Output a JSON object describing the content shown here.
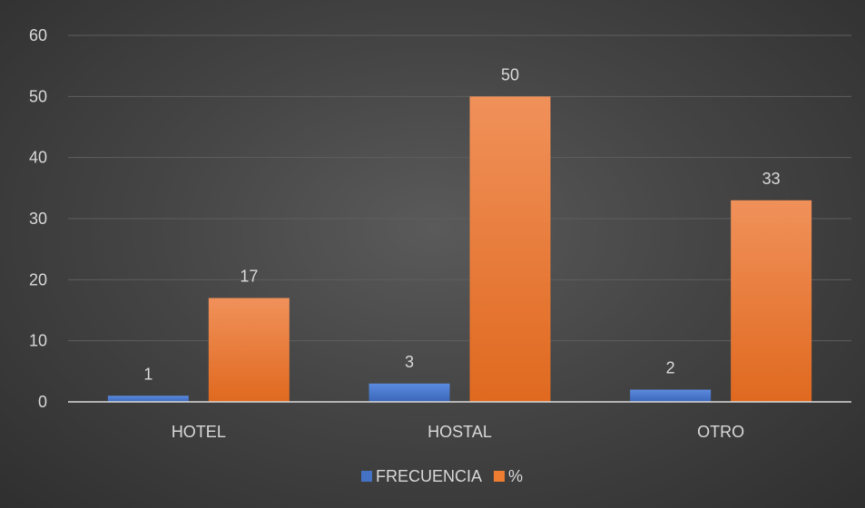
{
  "chart_data": {
    "type": "bar",
    "categories": [
      "HOTEL",
      "HOSTAL",
      "OTRO"
    ],
    "series": [
      {
        "name": "FRECUENCIA",
        "values": [
          1,
          3,
          2
        ],
        "color": "#4472c4"
      },
      {
        "name": "%",
        "values": [
          17,
          50,
          33
        ],
        "color": "#ed7d31"
      }
    ],
    "data_labels": [
      [
        "1",
        "3",
        "2"
      ],
      [
        "17",
        "50",
        "33"
      ]
    ],
    "ylim": [
      0,
      60
    ],
    "yticks": [
      0,
      10,
      20,
      30,
      40,
      50,
      60
    ],
    "grid": true,
    "legend_position": "bottom",
    "colors": {
      "background": "#404040",
      "text": "#d9d9d9",
      "grid": "#5e5e5e",
      "axis": "#d9d9d9"
    }
  }
}
